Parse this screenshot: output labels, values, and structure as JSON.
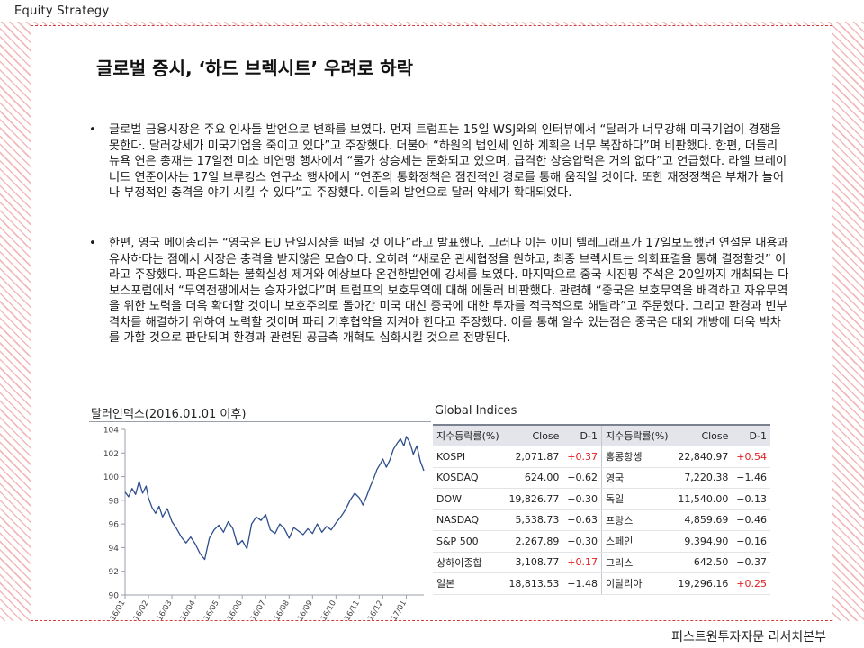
{
  "header": {
    "section_label": "Equity Strategy"
  },
  "footer": {
    "company": "퍼스트원투자자문 리서치본부"
  },
  "title": "글로벌 증시, ‘하드 브렉시트’ 우려로 하락",
  "paragraphs": [
    "글로벌 금융시장은 주요 인사들 발언으로 변화를 보였다. 먼저 트럼프는 15일 WSJ와의 인터뷰에서 “달러가 너무강해 미국기업이 경쟁을 못한다. 달러강세가 미국기업을 죽이고 있다”고 주장했다. 더불어 “하원의 법인세 인하 계획은 너무 복잡하다”며 비판했다. 한편, 더들리 뉴욕 연은 총재는 17일전 미소 비연맹 행사에서 “물가 상승세는 둔화되고 있으며, 급격한 상승압력은 거의 없다”고 언급했다. 라엘 브레이너드 연준이사는 17일 브루킹스 연구소 행사에서 “연준의 통화정책은 점진적인 경로를 통해 움직일 것이다. 또한 재정정책은 부채가 늘어나 부정적인 충격을 야기 시킬 수 있다”고 주장했다. 이들의 발언으로 달러 약세가 확대되었다.",
    "한편, 영국 메이총리는 “영국은 EU 단일시장을 떠날 것 이다”라고 발표했다. 그러나 이는 이미 텔레그래프가 17일보도했던 연설문 내용과 유사하다는 점에서 시장은 충격을 받지않은 모습이다. 오히려 “새로운 관세협정을 원하고, 최종 브렉시트는 의회표결을 통해 결정할것” 이라고 주장했다. 파운드화는 불확실성 제거와 예상보다 온건한발언에 강세를 보였다. 마지막으로 중국 시진핑 주석은 20일까지 개최되는 다보스포럼에서 “무역전쟁에서는 승자가없다”며 트럼프의 보호무역에 대해 에둘러 비판했다. 관련해 “중국은 보호무역을 배격하고 자유무역을 위한 노력을 더욱 확대할 것이니 보호주의로 돌아간 미국 대신 중국에 대한 투자를 적극적으로 해달라”고 주문했다. 그리고 환경과 빈부격차를 해결하기 위하여 노력할 것이며 파리 기후협약을 지켜야 한다고 주장했다. 이를 통해 알수 있는점은 중국은 대외 개방에 더욱 박차를 가할 것으로 판단되며 환경과 관련된 공급측 개혁도 심화시킬 것으로 전망된다."
  ],
  "bullet": "•",
  "chart": {
    "title": "달러인덱스(2016.01.01 이후)",
    "line_color": "#2e4d8c"
  },
  "chart_data": {
    "type": "line",
    "title": "달러인덱스(2016.01.01 이후)",
    "xlabel": "",
    "ylabel": "",
    "ylim": [
      90,
      104
    ],
    "yticks": [
      "104",
      "102",
      "100",
      "98",
      "96",
      "94",
      "92",
      "90"
    ],
    "xticks": [
      "16/01",
      "16/02",
      "16/03",
      "16/04",
      "16/05",
      "16/06",
      "16/07",
      "16/08",
      "16/09",
      "16/10",
      "16/11",
      "16/12",
      "17/01"
    ],
    "x": [
      0,
      0.15,
      0.3,
      0.45,
      0.6,
      0.75,
      0.9,
      1,
      1.15,
      1.3,
      1.45,
      1.6,
      1.8,
      2,
      2.2,
      2.4,
      2.6,
      2.8,
      3,
      3.2,
      3.4,
      3.6,
      3.8,
      4,
      4.2,
      4.4,
      4.6,
      4.8,
      5,
      5.2,
      5.4,
      5.6,
      5.8,
      6,
      6.2,
      6.4,
      6.6,
      6.8,
      7,
      7.2,
      7.4,
      7.6,
      7.8,
      8,
      8.2,
      8.4,
      8.6,
      8.8,
      9,
      9.2,
      9.4,
      9.6,
      9.8,
      10,
      10.15,
      10.3,
      10.45,
      10.6,
      10.75,
      10.9,
      11,
      11.15,
      11.3,
      11.45,
      11.6,
      11.75,
      11.9,
      12,
      12.15,
      12.3,
      12.45,
      12.6,
      12.75
    ],
    "y": [
      98.7,
      98.3,
      99.0,
      98.5,
      99.6,
      98.6,
      99.2,
      98.2,
      97.4,
      96.9,
      97.5,
      96.6,
      97.3,
      96.2,
      95.6,
      94.9,
      94.4,
      94.9,
      94.3,
      93.5,
      93.0,
      94.8,
      95.5,
      95.9,
      95.3,
      96.2,
      95.6,
      94.2,
      94.6,
      93.9,
      96.0,
      96.6,
      96.3,
      96.8,
      95.5,
      95.2,
      96.0,
      95.6,
      94.8,
      95.7,
      95.4,
      95.1,
      95.6,
      95.2,
      96.0,
      95.3,
      95.8,
      95.5,
      96.1,
      96.6,
      97.2,
      98.0,
      98.6,
      98.2,
      97.6,
      98.3,
      99.1,
      99.8,
      100.6,
      101.1,
      101.5,
      100.8,
      101.4,
      102.3,
      102.8,
      103.2,
      102.6,
      103.4,
      102.9,
      101.9,
      102.6,
      101.3,
      100.5
    ]
  },
  "indices": {
    "title": "Global Indices",
    "columns": [
      "지수등락률(%)",
      "Close",
      "D-1",
      "지수등락률(%)",
      "Close",
      "D-1"
    ],
    "rows": [
      {
        "name1": "KOSPI",
        "close1": "2,071.87",
        "d1": "+0.37",
        "d1_up": true,
        "name2": "홍콩항셍",
        "close2": "22,840.97",
        "d2": "+0.54",
        "d2_up": true
      },
      {
        "name1": "KOSDAQ",
        "close1": "624.00",
        "d1": "−0.62",
        "d1_up": false,
        "name2": "영국",
        "close2": "7,220.38",
        "d2": "−1.46",
        "d2_up": false
      },
      {
        "name1": "DOW",
        "close1": "19,826.77",
        "d1": "−0.30",
        "d1_up": false,
        "name2": "독일",
        "close2": "11,540.00",
        "d2": "−0.13",
        "d2_up": false
      },
      {
        "name1": "NASDAQ",
        "close1": "5,538.73",
        "d1": "−0.63",
        "d1_up": false,
        "name2": "프랑스",
        "close2": "4,859.69",
        "d2": "−0.46",
        "d2_up": false
      },
      {
        "name1": "S&P 500",
        "close1": "2,267.89",
        "d1": "−0.30",
        "d1_up": false,
        "name2": "스페인",
        "close2": "9,394.90",
        "d2": "−0.16",
        "d2_up": false
      },
      {
        "name1": "상하이종합",
        "close1": "3,108.77",
        "d1": "+0.17",
        "d1_up": true,
        "name2": "그리스",
        "close2": "642.50",
        "d2": "−0.37",
        "d2_up": false
      },
      {
        "name1": "일본",
        "close1": "18,813.53",
        "d1": "−1.48",
        "d1_up": false,
        "name2": "이탈리아",
        "close2": "19,296.16",
        "d2": "+0.25",
        "d2_up": true
      }
    ],
    "up_color": "#e02020"
  }
}
